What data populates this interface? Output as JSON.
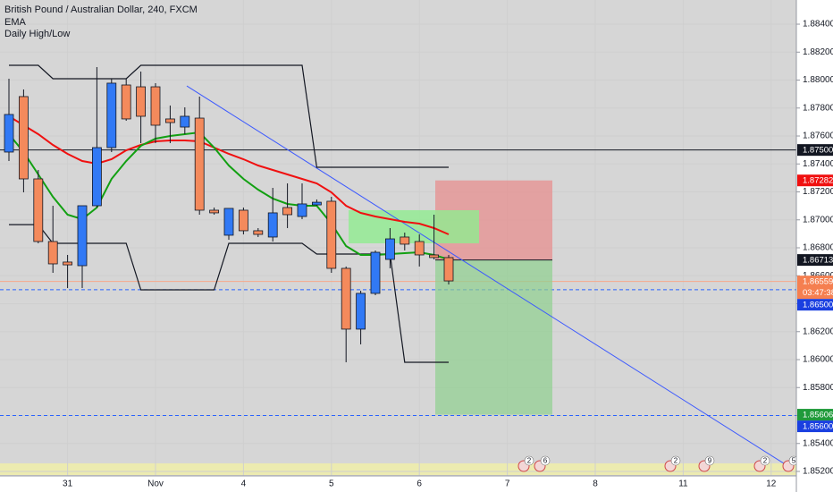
{
  "chart_data": {
    "type": "candlestick",
    "title": "British Pound / Australian Dollar, 240, FXCM",
    "categories": [
      null,
      null,
      null,
      null,
      "31",
      null,
      null,
      null,
      null,
      null,
      "Nov",
      null,
      null,
      null,
      null,
      null,
      "4",
      null,
      null,
      null,
      null,
      null,
      "5",
      null,
      null,
      null,
      null,
      null,
      "6",
      null,
      null,
      null,
      null,
      null,
      "7",
      null,
      null,
      null,
      null,
      null,
      "8",
      null,
      null,
      null,
      null,
      null,
      "11",
      null,
      null,
      null,
      null,
      null,
      "12"
    ],
    "open": [
      1.87485,
      1.87882,
      1.87293,
      1.86845,
      1.86698,
      1.86672,
      1.87101,
      1.87517,
      1.87965,
      1.87952,
      1.87952,
      1.87722,
      1.87664,
      1.87728,
      1.87069,
      1.8689,
      1.87069,
      1.86922,
      1.86877,
      1.87088,
      1.87024,
      1.87107,
      1.87133,
      1.86653,
      1.86218,
      1.86474,
      1.86717,
      1.86877,
      1.86845,
      1.86749,
      1.8673,
      null,
      null,
      null,
      null,
      null,
      null,
      null,
      null,
      null,
      null,
      null,
      null,
      null,
      null,
      null,
      null,
      null,
      null,
      null,
      null,
      null,
      null
    ],
    "high": [
      1.8801,
      1.87933,
      1.87357,
      1.87101,
      1.86749,
      1.87101,
      1.88093,
      1.8801,
      1.8801,
      1.88061,
      1.87978,
      1.87818,
      1.87805,
      1.87882,
      1.87088,
      1.87082,
      1.87088,
      1.86941,
      1.87229,
      1.87261,
      1.87261,
      1.87146,
      1.87165,
      1.86666,
      1.86493,
      1.86781,
      1.86941,
      1.86909,
      1.86896,
      1.87037,
      1.86749,
      null,
      null,
      null,
      null,
      null,
      null,
      null,
      null,
      null,
      null,
      null,
      null,
      null,
      null,
      null,
      null,
      null,
      null,
      null,
      null,
      null,
      null
    ],
    "low": [
      1.87421,
      1.87197,
      1.86832,
      1.86621,
      1.86512,
      1.86512,
      1.87088,
      1.87485,
      1.87709,
      1.87549,
      1.87549,
      1.87549,
      1.87613,
      1.87037,
      1.87037,
      1.86858,
      1.86896,
      1.86877,
      1.86845,
      1.86941,
      1.87005,
      1.87101,
      1.86621,
      1.85981,
      1.86109,
      1.86461,
      1.86653,
      1.86781,
      1.86666,
      1.86717,
      1.86538,
      null,
      null,
      null,
      null,
      null,
      null,
      null,
      null,
      null,
      null,
      null,
      null,
      null,
      null,
      null,
      null,
      null,
      null,
      null,
      null,
      null,
      null
    ],
    "close": [
      1.87754,
      1.87293,
      1.86845,
      1.86685,
      1.86678,
      1.87101,
      1.87517,
      1.87978,
      1.87722,
      1.87741,
      1.87677,
      1.87696,
      1.87741,
      1.87069,
      1.8705,
      1.87082,
      1.86922,
      1.86896,
      1.8705,
      1.87037,
      1.87114,
      1.87126,
      1.86653,
      1.86218,
      1.86474,
      1.86768,
      1.86864,
      1.86826,
      1.86749,
      1.8673,
      1.86563,
      null,
      null,
      null,
      null,
      null,
      null,
      null,
      null,
      null,
      null,
      null,
      null,
      null,
      null,
      null,
      null,
      null,
      null,
      null,
      null,
      null,
      null
    ],
    "up_color": "#3179f5",
    "down_color": "#f48a5c",
    "wick_color": "#131722",
    "ema": {
      "name": "EMA",
      "series": [
        {
          "color": "#f01010",
          "values": [
            1.87741,
            1.87677,
            1.87613,
            1.87536,
            1.87472,
            1.87421,
            1.87402,
            1.87434,
            1.87498,
            1.87536,
            1.87562,
            1.87568,
            1.87568,
            1.87562,
            1.87517,
            1.87472,
            1.87434,
            1.87389,
            1.87357,
            1.87325,
            1.87293,
            1.87261,
            1.87197,
            1.87101,
            1.8705,
            1.87024,
            1.87005,
            1.86986,
            1.86973,
            1.86941,
            1.86896,
            null,
            null,
            null,
            null,
            null,
            null,
            null,
            null,
            null,
            null,
            null,
            null,
            null,
            null,
            null,
            null,
            null,
            null,
            null,
            null,
            null,
            null
          ]
        },
        {
          "color": "#12a012",
          "values": [
            1.87613,
            1.87485,
            1.87325,
            1.87165,
            1.87037,
            1.87005,
            1.87088,
            1.87293,
            1.87421,
            1.8753,
            1.87581,
            1.876,
            1.87613,
            1.87626,
            1.87517,
            1.87389,
            1.87293,
            1.87216,
            1.87152,
            1.87114,
            1.87101,
            1.87101,
            1.86973,
            1.86813,
            1.86749,
            1.86749,
            1.86755,
            1.86762,
            1.86768,
            1.86749,
            1.86717,
            null,
            null,
            null,
            null,
            null,
            null,
            null,
            null,
            null,
            null,
            null,
            null,
            null,
            null,
            null,
            null,
            null,
            null,
            null,
            null,
            null,
            null
          ]
        }
      ]
    },
    "daily_high_low": {
      "name": "Daily High/Low",
      "color": "#131722",
      "high": [
        1.88106,
        1.88106,
        1.88106,
        1.8801,
        1.8801,
        1.8801,
        1.8801,
        1.8801,
        1.8801,
        1.88106,
        1.88106,
        1.88106,
        1.88106,
        1.88106,
        1.88106,
        1.88106,
        1.88106,
        1.88106,
        1.88106,
        1.88106,
        1.88106,
        1.87376,
        1.87376,
        1.87376,
        1.87376,
        1.87376,
        1.87376,
        1.87376,
        1.87376,
        1.87376,
        1.87376,
        null,
        null,
        null,
        null,
        null,
        null,
        null,
        null,
        null,
        null,
        null,
        null,
        null,
        null,
        null,
        null,
        null,
        null,
        null,
        null,
        null,
        null
      ],
      "low": [
        1.86966,
        1.86966,
        1.86966,
        1.86832,
        1.86832,
        1.86832,
        1.86832,
        1.86832,
        1.86832,
        1.86499,
        1.86499,
        1.86499,
        1.86499,
        1.86499,
        1.86499,
        1.86832,
        1.86832,
        1.86832,
        1.86832,
        1.86832,
        1.86832,
        1.86755,
        1.86755,
        1.86755,
        1.86755,
        1.86755,
        1.86755,
        1.85981,
        1.85981,
        1.85981,
        1.85981,
        null,
        null,
        null,
        null,
        null,
        null,
        null,
        null,
        null,
        null,
        null,
        null,
        null,
        null,
        null,
        null,
        null,
        null,
        null,
        null,
        null,
        null
      ]
    },
    "ylim": [
      1.85168,
      1.88573
    ],
    "yticks": [
      {
        "value": 1.852,
        "label": "1.85200"
      },
      {
        "value": 1.854,
        "label": "1.85400"
      },
      {
        "value": 1.856,
        "label": "1.85600"
      },
      {
        "value": 1.858,
        "label": "1.85800"
      },
      {
        "value": 1.86,
        "label": "1.86000"
      },
      {
        "value": 1.862,
        "label": "1.86200"
      },
      {
        "value": 1.864,
        "label": "1.86400"
      },
      {
        "value": 1.866,
        "label": "1.86600"
      },
      {
        "value": 1.868,
        "label": "1.86800"
      },
      {
        "value": 1.87,
        "label": "1.87000"
      },
      {
        "value": 1.872,
        "label": "1.87200"
      },
      {
        "value": 1.874,
        "label": "1.87400"
      },
      {
        "value": 1.876,
        "label": "1.87600"
      },
      {
        "value": 1.878,
        "label": "1.87800"
      },
      {
        "value": 1.88,
        "label": "1.88000"
      },
      {
        "value": 1.882,
        "label": "1.88200"
      },
      {
        "value": 1.884,
        "label": "1.88400"
      }
    ],
    "grid": true,
    "lines": [
      {
        "value": 1.875,
        "color": "#131722",
        "style": "solid"
      },
      {
        "value": 1.865,
        "color": "#2962ff",
        "style": "dashed"
      },
      {
        "value": 1.856,
        "color": "#2962ff",
        "style": "dashed"
      },
      {
        "value": 1.86559,
        "color": "#f7a98a",
        "style": "solid"
      }
    ],
    "price_labels": [
      {
        "value": 1.875,
        "label": "1.87500",
        "color": "#131722"
      },
      {
        "value": 1.87282,
        "label": "1.87282",
        "color": "#f01010"
      },
      {
        "value": 1.86713,
        "label": "1.86713",
        "color": "#131722"
      },
      {
        "value": 1.86559,
        "label": "1.86559",
        "countdown": "03:47:38",
        "color": "#f57f50"
      },
      {
        "value": 1.865,
        "label": "1.86500",
        "color": "#1a3fe0"
      },
      {
        "value": 1.85606,
        "label": "1.85606",
        "color": "#1f9a3a"
      },
      {
        "value": 1.856,
        "label": "1.85600",
        "color": "#1a3fe0"
      }
    ],
    "position": {
      "entry": 1.86713,
      "stop": 1.87282,
      "target": 1.85606,
      "loss_color": "#e88a8a",
      "profit_color": "#8fd08f"
    },
    "rectangle": {
      "top": 1.87069,
      "bottom": 1.86832,
      "color": "#90ec90"
    },
    "trendline": {
      "start": 1.87958,
      "end": 1.85245,
      "color": "#3d5afe"
    },
    "events": [
      2,
      6,
      2,
      9,
      2,
      5
    ]
  }
}
